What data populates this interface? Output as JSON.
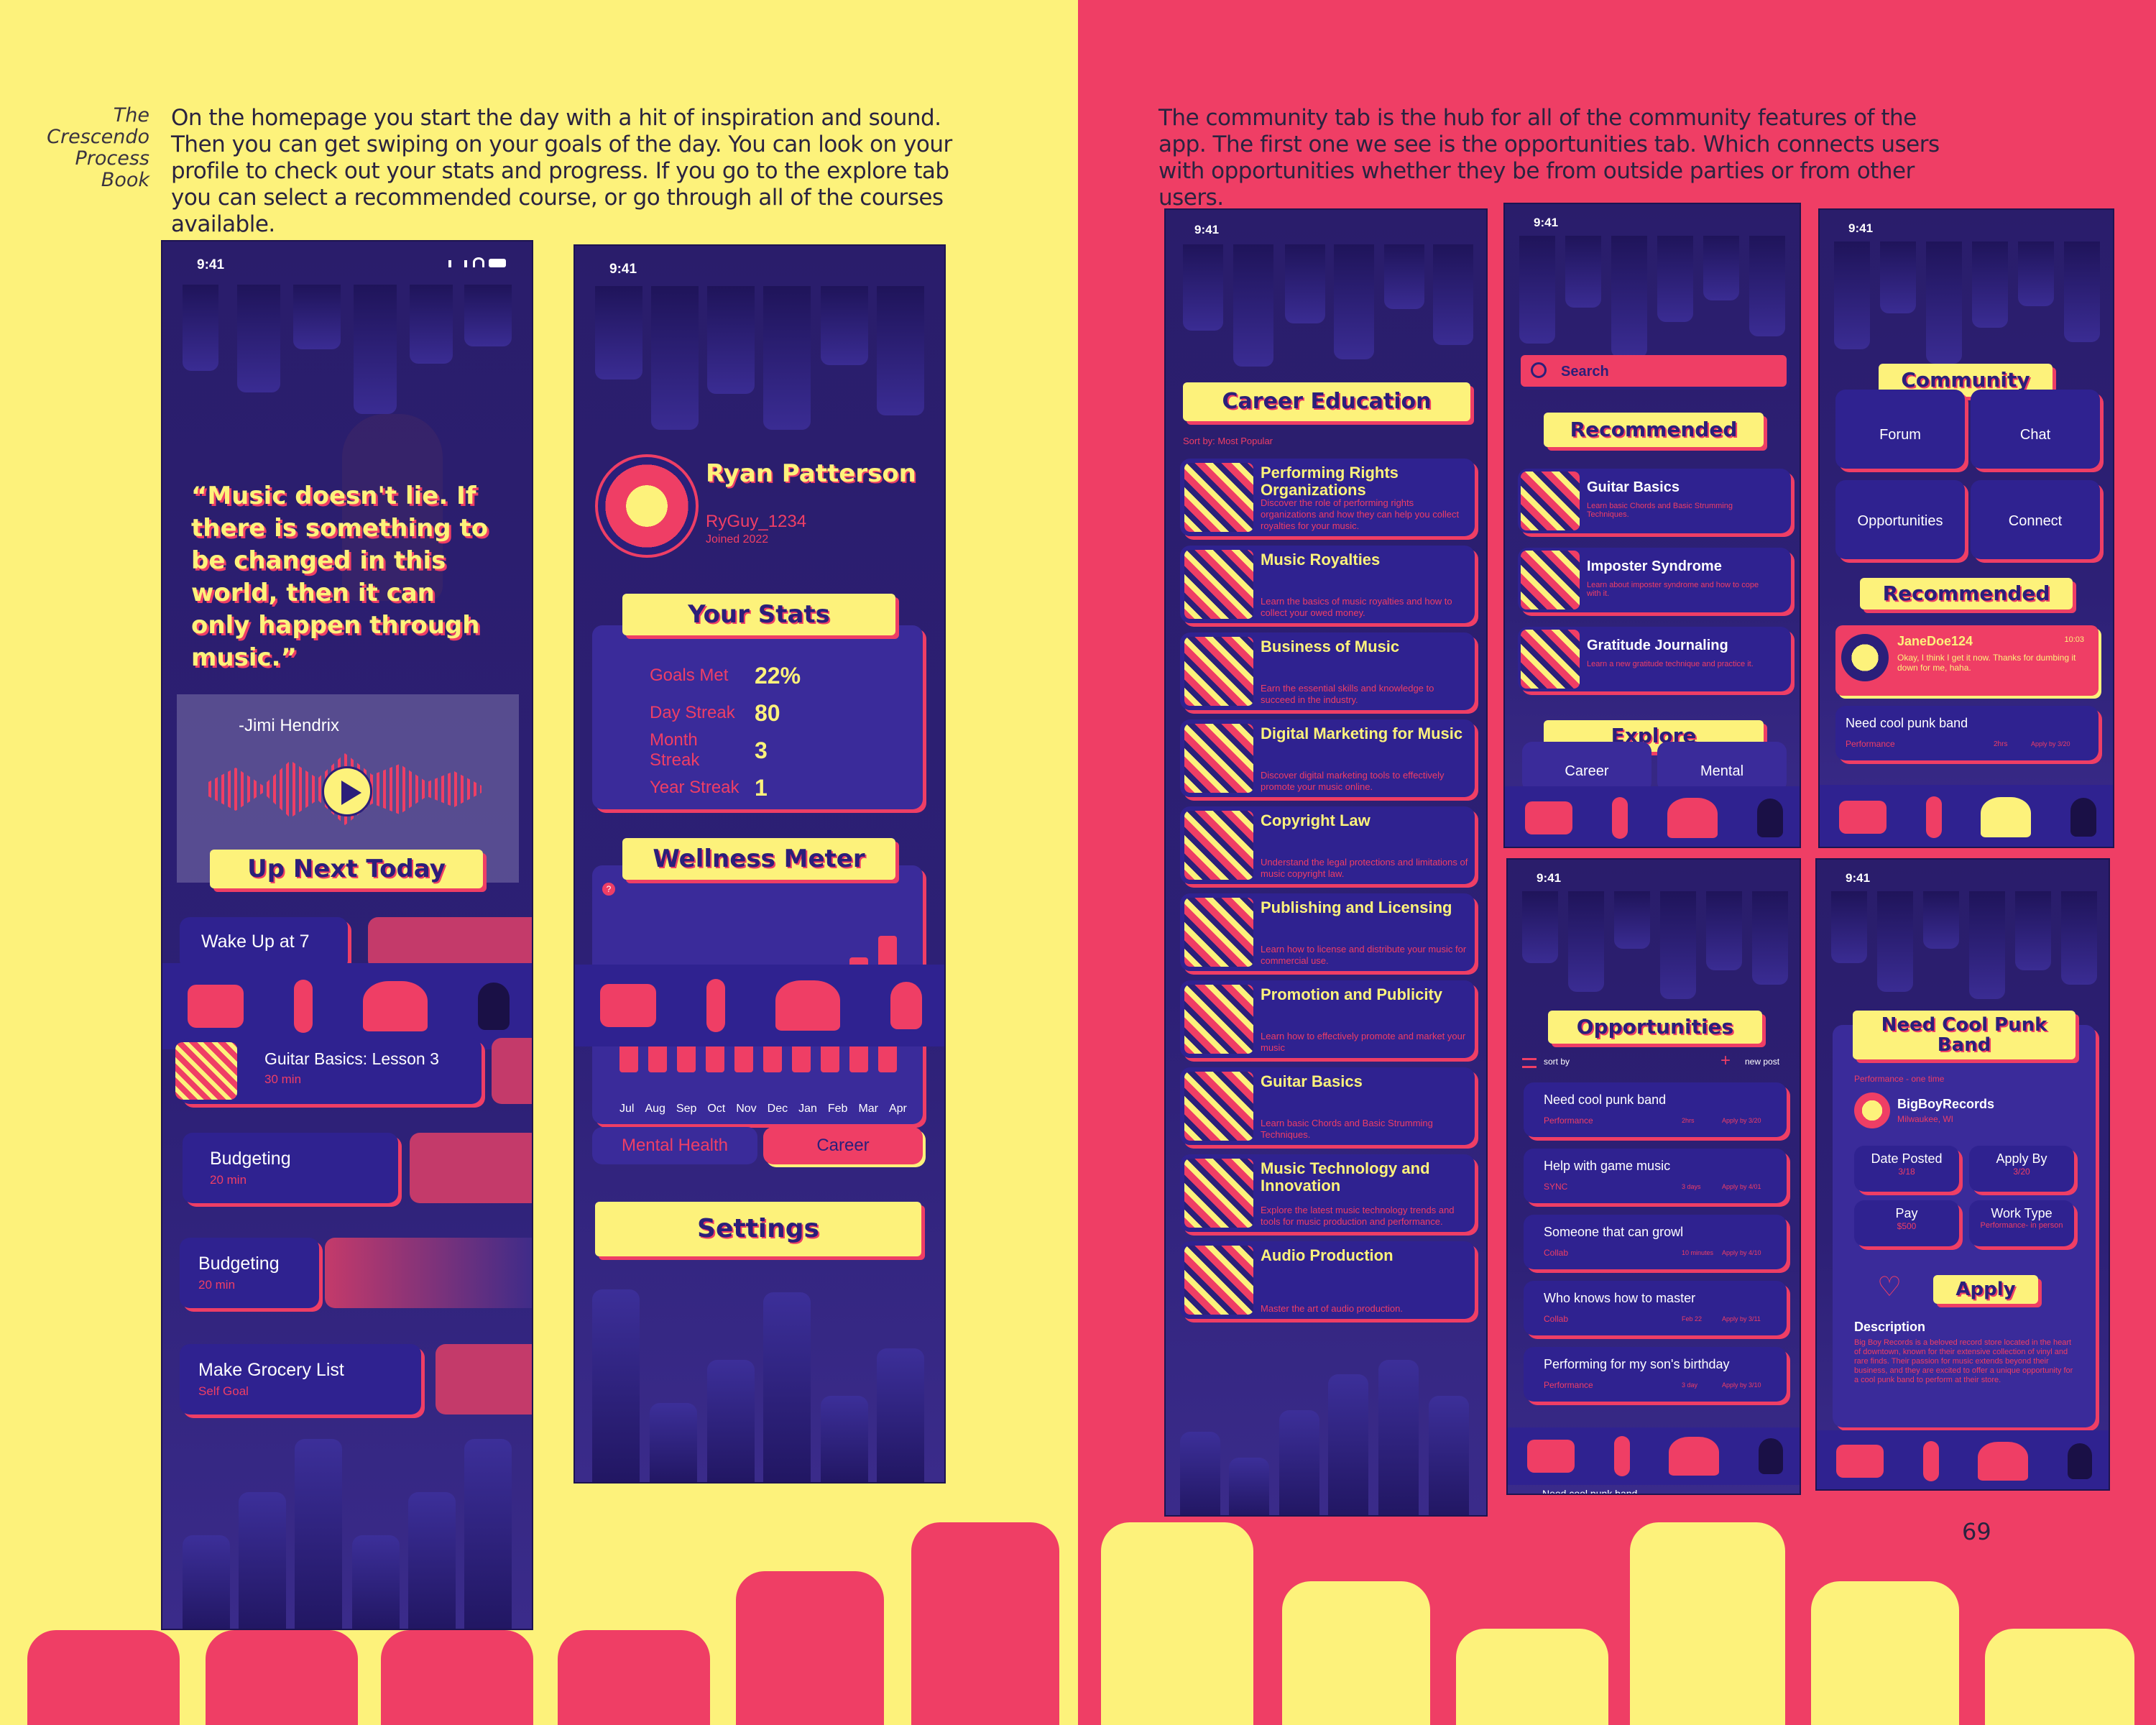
{
  "caption": {
    "line1": "The",
    "line2": "Crescendo",
    "line3": "Process",
    "line4": "Book"
  },
  "left_text": "On the homepage you start the day with a hit of inspiration and sound. Then you can get swiping on your goals of the day. You can look on your profile to check out your stats and progress. If you go to the explore tab you can select a recommended course, or go through all of the courses available.",
  "right_text": "The community tab is the hub for all of the community features of the app. The first one we see is the opportunities tab. Which connects users with opportunities whether they be from outside parties or from other users.",
  "page_number": "69",
  "status_time": "9:41",
  "home": {
    "quote": "“Music doesn't lie. If there is something to be changed in this world, then it can only happen through music.”",
    "author": "-Jimi Hendrix",
    "up_next": "Up Next Today",
    "tasks": [
      {
        "title": "Wake Up at 7",
        "sub": ""
      },
      {
        "title": "Guitar Basics: Lesson 3",
        "sub": "30 min"
      },
      {
        "title": "Budgeting",
        "sub": "20 min"
      },
      {
        "title": "Budgeting",
        "sub": "20 min"
      },
      {
        "title": "Make Grocery List",
        "sub": "Self Goal"
      }
    ]
  },
  "profile": {
    "name": "Ryan Patterson",
    "handle": "RyGuy_1234",
    "joined": "Joined 2022",
    "stats_title": "Your Stats",
    "stats": [
      {
        "label": "Goals Met",
        "value": "22%"
      },
      {
        "label": "Day Streak",
        "value": "80"
      },
      {
        "label": "Month Streak",
        "value": "3"
      },
      {
        "label": "Year Streak",
        "value": "1"
      }
    ],
    "wellness_title": "Wellness Meter",
    "months": [
      "Jul",
      "Aug",
      "Sep",
      "Oct",
      "Nov",
      "Dec",
      "Jan",
      "Feb",
      "Mar",
      "Apr"
    ],
    "tab_mental": "Mental Health",
    "tab_career": "Career",
    "settings": "Settings"
  },
  "career": {
    "title": "Career Education",
    "sort": "Sort by: Most Popular",
    "courses": [
      {
        "title": "Performing Rights Organizations",
        "desc": "Discover the role of performing rights organizations and how they can help you collect royalties for your music."
      },
      {
        "title": "Music Royalties",
        "desc": "Learn the basics of music royalties and how to collect your owed money."
      },
      {
        "title": "Business of Music",
        "desc": "Earn the essential skills and knowledge to succeed in the industry."
      },
      {
        "title": "Digital Marketing for Music",
        "desc": "Discover digital marketing tools to effectively promote your music online."
      },
      {
        "title": "Copyright Law",
        "desc": "Understand the legal protections and limitations of music copyright law."
      },
      {
        "title": "Publishing and Licensing",
        "desc": "Learn how to license and distribute your music for commercial use."
      },
      {
        "title": "Promotion and Publicity",
        "desc": "Learn how to effectively promote and market your music"
      },
      {
        "title": "Guitar Basics",
        "desc": "Learn basic Chords and Basic Strumming Techniques."
      },
      {
        "title": "Music Technology and Innovation",
        "desc": "Explore the latest music technology trends and tools for music production and performance."
      },
      {
        "title": "Audio Production",
        "desc": "Master the art of audio production."
      }
    ]
  },
  "explore": {
    "search": "Search",
    "recommended": "Recommended",
    "items": [
      {
        "title": "Guitar Basics",
        "desc": "Learn basic Chords and Basic Strumming Techniques."
      },
      {
        "title": "Imposter Syndrome",
        "desc": "Learn about imposter syndrome and how to cope with it."
      },
      {
        "title": "Gratitude Journaling",
        "desc": "Learn a new gratitude technique and practice it."
      }
    ],
    "explore_label": "Explore",
    "tabs": [
      "Career",
      "Mental"
    ]
  },
  "community": {
    "title": "Community",
    "tiles": [
      "Forum",
      "Chat",
      "Opportunities",
      "Connect"
    ],
    "recommended": "Recommended",
    "post_user": "JaneDoe124",
    "post_time": "10:03",
    "post_text": "Okay, I think I get it now. Thanks for dumbing it down for me, haha.",
    "opp_title": "Need cool punk band",
    "opp_sub": "Performance",
    "opp_time": "2hrs",
    "opp_apply": "Apply by 3/20"
  },
  "opportunities": {
    "title": "Opportunities",
    "sort": "sort by",
    "new_post": "new post",
    "items": [
      {
        "title": "Need cool punk band",
        "cat": "Performance",
        "time": "2hrs",
        "apply": "Apply by 3/20"
      },
      {
        "title": "Help with game music",
        "cat": "SYNC",
        "time": "3 days",
        "apply": "Apply by 4/01"
      },
      {
        "title": "Someone that can growl",
        "cat": "Collab",
        "time": "10 minutes",
        "apply": "Apply by 4/10"
      },
      {
        "title": "Who knows how to master",
        "cat": "Collab",
        "time": "Feb 22",
        "apply": "Apply by 3/11"
      },
      {
        "title": "Performing for my son's birthday",
        "cat": "Performance",
        "time": "3 day",
        "apply": "Apply by 3/10"
      }
    ],
    "peek": "Need cool punk band"
  },
  "detail": {
    "title": "Need Cool Punk Band",
    "sub": "Performance - one time",
    "org": "BigBoyRecords",
    "loc": "Milwaukee, WI",
    "fields": [
      {
        "label": "Date Posted",
        "value": "3/18"
      },
      {
        "label": "Apply By",
        "value": "3/20"
      },
      {
        "label": "Pay",
        "value": "$500"
      },
      {
        "label": "Work Type",
        "value": "Performance- in person"
      }
    ],
    "apply": "Apply",
    "desc_title": "Description",
    "desc": "Big Boy Records is a beloved record store located in the heart of downtown, known for their extensive collection of vinyl and rare finds. Their passion for music extends beyond their business, and they are excited to offer a unique opportunity for a cool punk band to perform at their store."
  },
  "colors": {
    "yellow": "#FDF27B",
    "pink": "#EF3E65",
    "navy": "#2B1F7A"
  }
}
